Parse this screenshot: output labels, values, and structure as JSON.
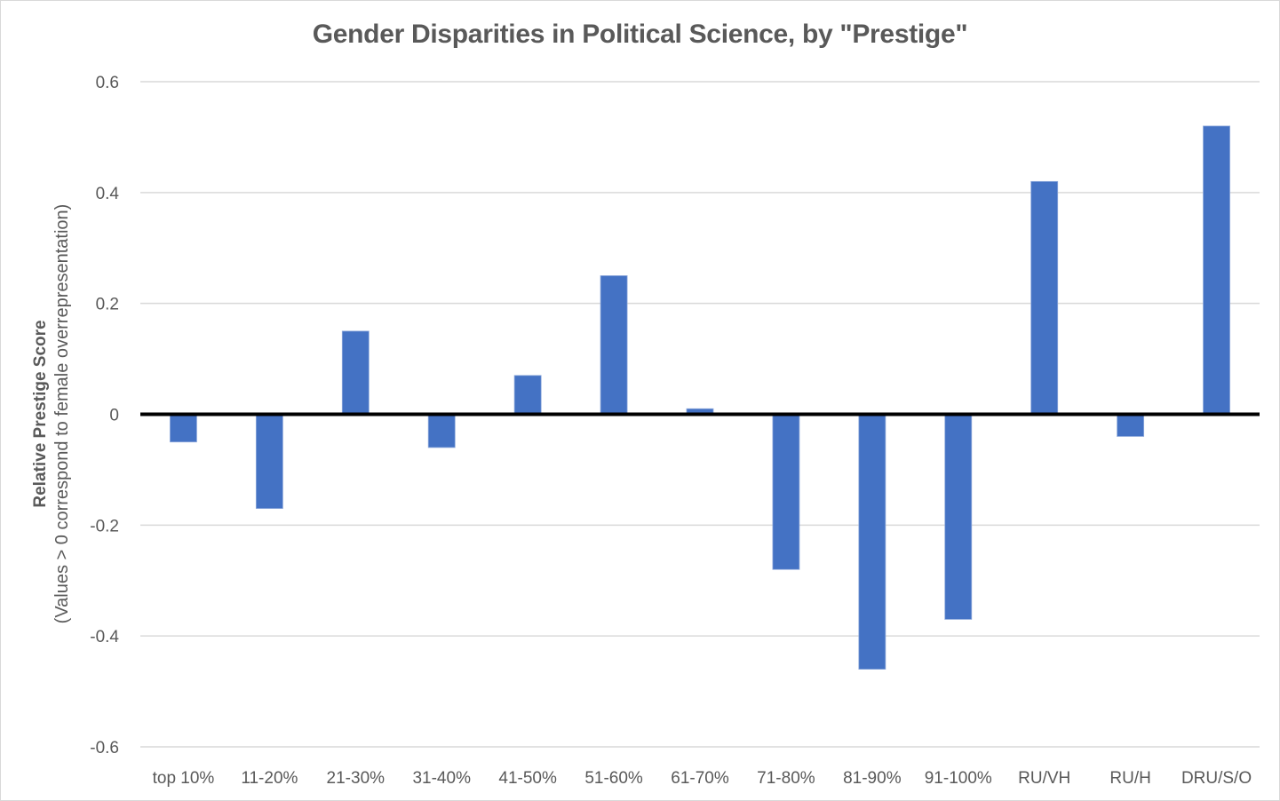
{
  "chart_data": {
    "type": "bar",
    "title": "Gender Disparities in Political Science, by \"Prestige\"",
    "xlabel": "",
    "ylabel": "Relative Prestige Score",
    "ylabel_sub": "(Values > 0 correspond to female overrepresentation)",
    "ylim": [
      -0.6,
      0.6
    ],
    "yticks": [
      0.6,
      0.4,
      0.2,
      0,
      -0.2,
      -0.4,
      -0.6
    ],
    "ytick_labels": [
      "0.6",
      "0.4",
      "0.2",
      "0",
      "-0.2",
      "-0.4",
      "-0.6"
    ],
    "grid": true,
    "legend": "none",
    "categories": [
      "top 10%",
      "11-20%",
      "21-30%",
      "31-40%",
      "41-50%",
      "51-60%",
      "61-70%",
      "71-80%",
      "81-90%",
      "91-100%",
      "RU/VH",
      "RU/H",
      "DRU/S/O"
    ],
    "values": [
      -0.05,
      -0.17,
      0.15,
      -0.06,
      0.07,
      0.25,
      0.01,
      -0.28,
      -0.46,
      -0.37,
      0.42,
      -0.04,
      0.52
    ],
    "colors": {
      "bar": "#4472c4",
      "grid": "#d9d9d9",
      "zero_line": "#000000",
      "text": "#595959"
    }
  }
}
